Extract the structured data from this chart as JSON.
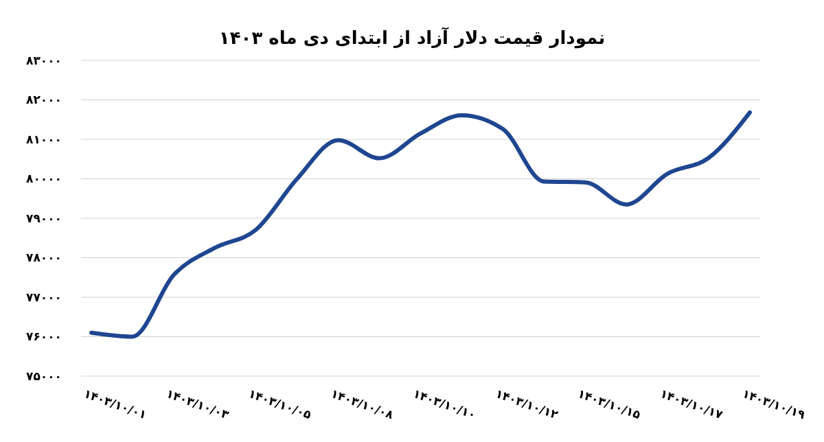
{
  "chart_data": {
    "type": "line",
    "title": "نمودار قیمت دلار آزاد از ابتدای دی ماه ۱۴۰۳",
    "categories": [
      "۱۴۰۳/۱۰/۰۱",
      null,
      "۱۴۰۳/۱۰/۰۳",
      null,
      "۱۴۰۳/۱۰/۰۵",
      null,
      "۱۴۰۳/۱۰/۰۸",
      null,
      "۱۴۰۳/۱۰/۱۰",
      null,
      "۱۴۰۳/۱۰/۱۲",
      null,
      "۱۴۰۳/۱۰/۱۵",
      null,
      "۱۴۰۳/۱۰/۱۷",
      null,
      "۱۴۰۳/۱۰/۱۹"
    ],
    "series": [
      {
        "color": "#1f4690",
        "values": [
          76100,
          76000,
          77560,
          78250,
          78710,
          80000,
          80980,
          80520,
          81150,
          81610,
          81260,
          79930,
          79910,
          79350,
          80130,
          80530,
          81680
        ]
      }
    ],
    "ylim": [
      75000,
      83000
    ],
    "yticks": [
      {
        "value": 75000,
        "label": "۷۵۰۰۰"
      },
      {
        "value": 76000,
        "label": "۷۶۰۰۰"
      },
      {
        "value": 77000,
        "label": "۷۷۰۰۰"
      },
      {
        "value": 78000,
        "label": "۷۸۰۰۰"
      },
      {
        "value": 79000,
        "label": "۷۹۰۰۰"
      },
      {
        "value": 80000,
        "label": "۸۰۰۰۰"
      },
      {
        "value": 81000,
        "label": "۸۱۰۰۰"
      },
      {
        "value": 82000,
        "label": "۸۲۰۰۰"
      },
      {
        "value": 83000,
        "label": "۸۳۰۰۰"
      }
    ],
    "grid": "y",
    "marker": "none",
    "line_style": "solid"
  }
}
